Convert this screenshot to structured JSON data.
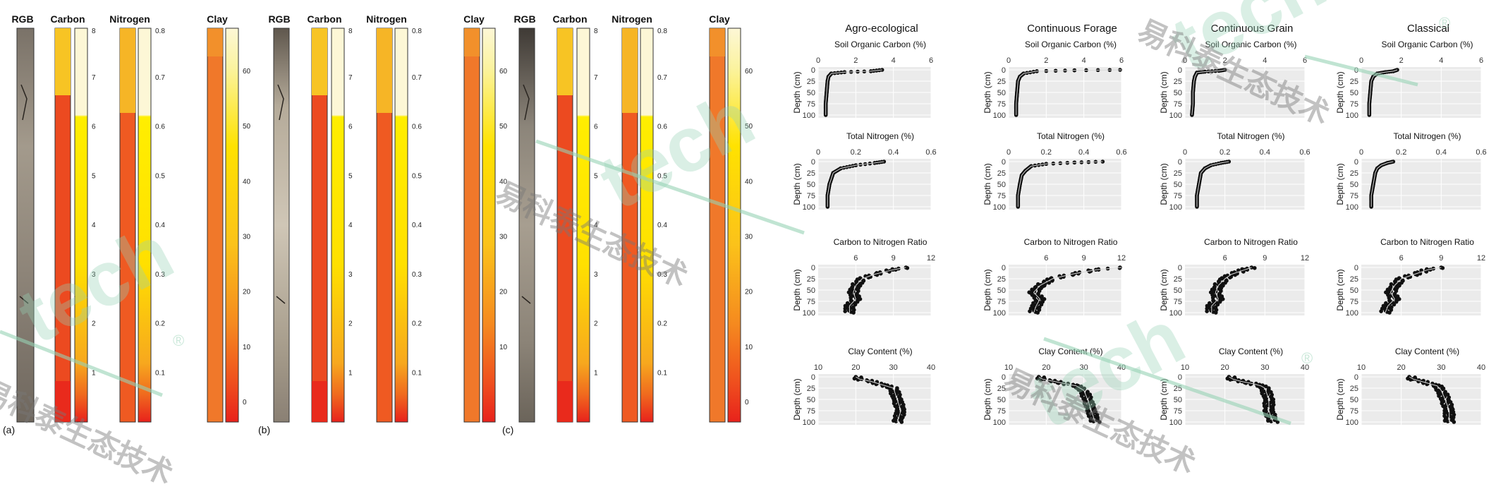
{
  "left_figure": {
    "panels": [
      {
        "letter": "(a)",
        "headers": {
          "rgb": "RGB",
          "carbon": "Carbon",
          "nitrogen": "Nitrogen",
          "clay": "Clay"
        }
      },
      {
        "letter": "(b)",
        "headers": {
          "rgb": "RGB",
          "carbon": "Carbon",
          "nitrogen": "Nitrogen",
          "clay": "Clay"
        }
      },
      {
        "letter": "(c)",
        "headers": {
          "rgb": "RGB",
          "carbon": "Carbon",
          "nitrogen": "Nitrogen",
          "clay": "Clay"
        }
      }
    ],
    "scales": {
      "carbon": {
        "ticks": [
          "1",
          "2",
          "3",
          "4",
          "5",
          "6",
          "7",
          "8"
        ]
      },
      "nitrogen": {
        "ticks": [
          "0.1",
          "0.2",
          "0.3",
          "0.4",
          "0.5",
          "0.6",
          "0.7",
          "0.8"
        ]
      },
      "clay_a": {
        "ticks": [
          "0",
          "10",
          "20",
          "30",
          "40",
          "50",
          "60"
        ]
      },
      "clay_b": {
        "ticks": [
          "10",
          "20",
          "30",
          "40",
          "50",
          "60"
        ]
      },
      "clay_c": {
        "ticks": [
          "0",
          "10",
          "20",
          "30",
          "40",
          "50",
          "60"
        ]
      }
    },
    "colors": {
      "low": "#e8221c",
      "mid": "#f08a24",
      "high": "#ffee00",
      "top": "#fdf7d6"
    }
  },
  "chart_data": {
    "type": "scatter",
    "columns": [
      "Agro-ecological",
      "Continuous Forage",
      "Continuous Grain",
      "Classical"
    ],
    "ylabel": "Depth (cm)",
    "ylim": [
      100,
      0
    ],
    "yticks": [
      "0",
      "25",
      "50",
      "75",
      "100"
    ],
    "rows": [
      {
        "title": "Soil Organic Carbon (%)",
        "xlim": [
          0,
          6
        ],
        "xticks": [
          "0",
          "2",
          "4",
          "6"
        ],
        "profiles": [
          {
            "column": "Agro-ecological",
            "points": [
              [
                3.4,
                0
              ],
              [
                2.8,
                3
              ],
              [
                1.4,
                5
              ],
              [
                0.7,
                8
              ],
              [
                0.55,
                15
              ],
              [
                0.5,
                25
              ],
              [
                0.45,
                50
              ],
              [
                0.4,
                75
              ],
              [
                0.4,
                100
              ]
            ]
          },
          {
            "column": "Continuous Forage",
            "points": [
              [
                6.0,
                0
              ],
              [
                3.5,
                1
              ],
              [
                1.5,
                3
              ],
              [
                0.8,
                8
              ],
              [
                0.6,
                15
              ],
              [
                0.5,
                25
              ],
              [
                0.45,
                50
              ],
              [
                0.4,
                75
              ],
              [
                0.4,
                100
              ]
            ]
          },
          {
            "column": "Continuous Grain",
            "points": [
              [
                2.0,
                0
              ],
              [
                1.7,
                2
              ],
              [
                1.0,
                4
              ],
              [
                0.6,
                6
              ],
              [
                0.5,
                15
              ],
              [
                0.45,
                25
              ],
              [
                0.4,
                50
              ],
              [
                0.4,
                75
              ],
              [
                0.35,
                100
              ]
            ]
          },
          {
            "column": "Classical",
            "points": [
              [
                1.8,
                0
              ],
              [
                1.6,
                3
              ],
              [
                1.2,
                5
              ],
              [
                0.8,
                8
              ],
              [
                0.6,
                15
              ],
              [
                0.5,
                25
              ],
              [
                0.45,
                50
              ],
              [
                0.4,
                75
              ],
              [
                0.4,
                100
              ]
            ]
          }
        ]
      },
      {
        "title": "Total Nitrogen (%)",
        "xlim": [
          0,
          0.6
        ],
        "xticks": [
          "0",
          "0.2",
          "0.4",
          "0.6"
        ],
        "profiles": [
          {
            "column": "Agro-ecological",
            "points": [
              [
                0.35,
                0
              ],
              [
                0.3,
                3
              ],
              [
                0.2,
                8
              ],
              [
                0.12,
                15
              ],
              [
                0.08,
                25
              ],
              [
                0.06,
                50
              ],
              [
                0.05,
                75
              ],
              [
                0.05,
                100
              ]
            ]
          },
          {
            "column": "Continuous Forage",
            "points": [
              [
                0.5,
                0
              ],
              [
                0.35,
                2
              ],
              [
                0.2,
                5
              ],
              [
                0.12,
                10
              ],
              [
                0.09,
                20
              ],
              [
                0.07,
                30
              ],
              [
                0.06,
                50
              ],
              [
                0.05,
                75
              ],
              [
                0.05,
                100
              ]
            ]
          },
          {
            "column": "Continuous Grain",
            "points": [
              [
                0.22,
                0
              ],
              [
                0.18,
                3
              ],
              [
                0.13,
                8
              ],
              [
                0.1,
                15
              ],
              [
                0.08,
                25
              ],
              [
                0.07,
                50
              ],
              [
                0.06,
                75
              ],
              [
                0.06,
                100
              ]
            ]
          },
          {
            "column": "Classical",
            "points": [
              [
                0.16,
                0
              ],
              [
                0.13,
                3
              ],
              [
                0.1,
                8
              ],
              [
                0.08,
                15
              ],
              [
                0.07,
                25
              ],
              [
                0.06,
                50
              ],
              [
                0.05,
                75
              ],
              [
                0.05,
                100
              ]
            ]
          }
        ]
      },
      {
        "title": "Carbon to Nitrogen Ratio",
        "xlim": [
          3,
          12
        ],
        "xticks": [
          "6",
          "9",
          "12"
        ],
        "profiles": [
          {
            "column": "Agro-ecological",
            "points": [
              [
                10,
                0
              ],
              [
                9,
                5
              ],
              [
                7.5,
                15
              ],
              [
                6.5,
                25
              ],
              [
                6,
                40
              ],
              [
                5.8,
                55
              ],
              [
                6,
                70
              ],
              [
                5.5,
                85
              ],
              [
                5.5,
                100
              ]
            ]
          },
          {
            "column": "Continuous Forage",
            "points": [
              [
                12,
                0
              ],
              [
                10,
                5
              ],
              [
                8,
                15
              ],
              [
                6.5,
                25
              ],
              [
                5.5,
                40
              ],
              [
                5,
                55
              ],
              [
                5.5,
                70
              ],
              [
                5.2,
                85
              ],
              [
                5,
                100
              ]
            ]
          },
          {
            "column": "Continuous Grain",
            "points": [
              [
                8,
                0
              ],
              [
                7.5,
                5
              ],
              [
                6.5,
                15
              ],
              [
                6,
                25
              ],
              [
                5.5,
                40
              ],
              [
                5.3,
                55
              ],
              [
                5.5,
                70
              ],
              [
                5,
                85
              ],
              [
                5,
                100
              ]
            ]
          },
          {
            "column": "Classical",
            "points": [
              [
                9,
                0
              ],
              [
                8,
                5
              ],
              [
                7,
                15
              ],
              [
                6,
                25
              ],
              [
                5.5,
                40
              ],
              [
                5.2,
                55
              ],
              [
                5.5,
                70
              ],
              [
                5,
                85
              ],
              [
                4.8,
                100
              ]
            ]
          }
        ]
      },
      {
        "title": "Clay Content (%)",
        "xlim": [
          10,
          40
        ],
        "xticks": [
          "10",
          "20",
          "30",
          "40"
        ],
        "profiles": [
          {
            "column": "Agro-ecological",
            "points": [
              [
                20,
                0
              ],
              [
                21,
                5
              ],
              [
                24,
                10
              ],
              [
                26,
                15
              ],
              [
                28,
                20
              ],
              [
                30,
                25
              ],
              [
                31,
                50
              ],
              [
                32,
                75
              ],
              [
                31,
                100
              ]
            ]
          },
          {
            "column": "Continuous Forage",
            "points": [
              [
                18,
                0
              ],
              [
                19,
                5
              ],
              [
                22,
                10
              ],
              [
                25,
                15
              ],
              [
                28,
                20
              ],
              [
                30,
                30
              ],
              [
                31,
                50
              ],
              [
                32,
                75
              ],
              [
                33,
                100
              ]
            ]
          },
          {
            "column": "Continuous Grain",
            "points": [
              [
                21,
                0
              ],
              [
                22,
                5
              ],
              [
                24,
                10
              ],
              [
                27,
                15
              ],
              [
                29,
                20
              ],
              [
                30,
                25
              ],
              [
                31,
                50
              ],
              [
                31,
                75
              ],
              [
                32,
                100
              ]
            ]
          },
          {
            "column": "Classical",
            "points": [
              [
                22,
                0
              ],
              [
                23,
                5
              ],
              [
                25,
                10
              ],
              [
                27,
                15
              ],
              [
                29,
                20
              ],
              [
                30,
                30
              ],
              [
                31,
                50
              ],
              [
                32,
                75
              ],
              [
                32,
                100
              ]
            ]
          }
        ]
      }
    ],
    "background": "#ebebeb",
    "grid": true,
    "point_color": "#111111"
  },
  "watermark": {
    "brand": "tech",
    "chinese": "易科泰生态技术",
    "registered": "®"
  }
}
